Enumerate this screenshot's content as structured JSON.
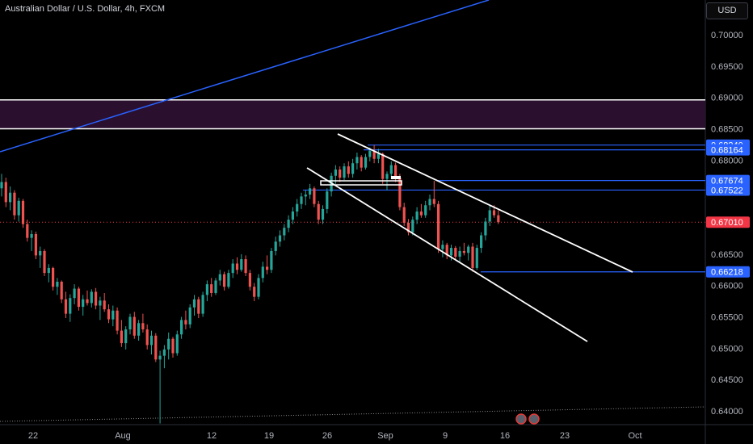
{
  "header": {
    "title": "Australian Dollar / U.S. Dollar, 4h, FXCM",
    "currency": "USD"
  },
  "colors": {
    "background": "#000000",
    "up": "#26a69a",
    "down": "#ef5350",
    "trendline": "#2962ff",
    "level": "#2962ff",
    "channel": "#ffffff",
    "zone": "#2a0f2e",
    "price_label": "#f23645",
    "axis_text": "#b2b5be"
  },
  "chart_data": {
    "type": "candlestick",
    "symbol": "AUDUSD",
    "interval": "4h",
    "source": "FXCM",
    "ylim": [
      0.6379,
      0.7075
    ],
    "y_ticks": [
      0.7,
      0.695,
      0.69,
      0.685,
      0.68,
      0.675,
      0.67,
      0.665,
      0.66,
      0.655,
      0.65,
      0.645,
      0.64
    ],
    "y_tick_labels": [
      "0.70000",
      "0.69500",
      "0.69000",
      "0.68500",
      "0.68000",
      "0.67500",
      "0.67000",
      "0.66500",
      "0.66000",
      "0.65500",
      "0.65000",
      "0.64500",
      "0.64000"
    ],
    "x_tick_labels": [
      "22",
      "Aug",
      "12",
      "19",
      "26",
      "Sep",
      "9",
      "16",
      "23",
      "Oct"
    ],
    "price_labels": [
      {
        "value": 0.6824,
        "text": "0.68240"
      },
      {
        "value": 0.68164,
        "text": "0.68164"
      },
      {
        "value": 0.67674,
        "text": "0.67674"
      },
      {
        "value": 0.67522,
        "text": "0.67522"
      },
      {
        "value": 0.6701,
        "text": "0.67010",
        "current": true
      },
      {
        "value": 0.66218,
        "text": "0.66218"
      }
    ],
    "zone": {
      "from": 0.685,
      "to": 0.6896
    },
    "ohlc": [
      [
        0.6755,
        0.6778,
        0.6742,
        0.6765
      ],
      [
        0.6765,
        0.6772,
        0.6725,
        0.6733
      ],
      [
        0.6733,
        0.6758,
        0.672,
        0.6748
      ],
      [
        0.6748,
        0.6752,
        0.6705,
        0.6712
      ],
      [
        0.6712,
        0.674,
        0.6702,
        0.6735
      ],
      [
        0.6735,
        0.6738,
        0.6692,
        0.6698
      ],
      [
        0.6698,
        0.6705,
        0.667,
        0.6676
      ],
      [
        0.6676,
        0.6688,
        0.6655,
        0.6682
      ],
      [
        0.6682,
        0.6686,
        0.6642,
        0.6648
      ],
      [
        0.6648,
        0.6662,
        0.6628,
        0.6655
      ],
      [
        0.6655,
        0.6658,
        0.6615,
        0.662
      ],
      [
        0.662,
        0.6634,
        0.6605,
        0.6628
      ],
      [
        0.6628,
        0.663,
        0.6592,
        0.6598
      ],
      [
        0.6598,
        0.6612,
        0.6585,
        0.6606
      ],
      [
        0.6606,
        0.6608,
        0.6572,
        0.6578
      ],
      [
        0.6578,
        0.659,
        0.6548,
        0.6555
      ],
      [
        0.6555,
        0.6586,
        0.6542,
        0.658
      ],
      [
        0.658,
        0.6602,
        0.657,
        0.6595
      ],
      [
        0.6595,
        0.6598,
        0.656,
        0.6566
      ],
      [
        0.6566,
        0.6585,
        0.6552,
        0.6578
      ],
      [
        0.6578,
        0.6592,
        0.6568,
        0.6572
      ],
      [
        0.6572,
        0.6594,
        0.6565,
        0.659
      ],
      [
        0.659,
        0.6596,
        0.6562,
        0.6568
      ],
      [
        0.6568,
        0.6582,
        0.6545,
        0.6576
      ],
      [
        0.6576,
        0.6588,
        0.6558,
        0.6562
      ],
      [
        0.6562,
        0.657,
        0.654,
        0.6546
      ],
      [
        0.6546,
        0.6568,
        0.6535,
        0.656
      ],
      [
        0.656,
        0.6565,
        0.6522,
        0.6528
      ],
      [
        0.6528,
        0.6545,
        0.6502,
        0.6508
      ],
      [
        0.6508,
        0.6535,
        0.6498,
        0.653
      ],
      [
        0.653,
        0.6555,
        0.6522,
        0.655
      ],
      [
        0.655,
        0.6558,
        0.6515,
        0.652
      ],
      [
        0.652,
        0.6545,
        0.6512,
        0.654
      ],
      [
        0.654,
        0.6555,
        0.6525,
        0.653
      ],
      [
        0.653,
        0.6538,
        0.6498,
        0.6505
      ],
      [
        0.6505,
        0.6528,
        0.649,
        0.652
      ],
      [
        0.652,
        0.6524,
        0.6478,
        0.6482
      ],
      [
        0.6482,
        0.6496,
        0.638,
        0.6488
      ],
      [
        0.6488,
        0.6505,
        0.6468,
        0.6498
      ],
      [
        0.6498,
        0.6525,
        0.6482,
        0.6515
      ],
      [
        0.6515,
        0.6518,
        0.6485,
        0.6492
      ],
      [
        0.6492,
        0.6528,
        0.6488,
        0.6522
      ],
      [
        0.6522,
        0.655,
        0.6515,
        0.6545
      ],
      [
        0.6545,
        0.656,
        0.653,
        0.6538
      ],
      [
        0.6538,
        0.657,
        0.6532,
        0.6565
      ],
      [
        0.6565,
        0.6585,
        0.6552,
        0.6578
      ],
      [
        0.6578,
        0.6582,
        0.6548,
        0.6555
      ],
      [
        0.6555,
        0.659,
        0.655,
        0.6585
      ],
      [
        0.6585,
        0.6608,
        0.6575,
        0.6602
      ],
      [
        0.6602,
        0.6612,
        0.6582,
        0.6588
      ],
      [
        0.6588,
        0.6612,
        0.6585,
        0.6608
      ],
      [
        0.6608,
        0.6625,
        0.66,
        0.6618
      ],
      [
        0.6618,
        0.6622,
        0.6592,
        0.6598
      ],
      [
        0.6598,
        0.6625,
        0.6595,
        0.662
      ],
      [
        0.662,
        0.6642,
        0.6612,
        0.6635
      ],
      [
        0.6635,
        0.6645,
        0.6618,
        0.6625
      ],
      [
        0.6625,
        0.665,
        0.6622,
        0.6642
      ],
      [
        0.6642,
        0.6648,
        0.6615,
        0.662
      ],
      [
        0.662,
        0.6625,
        0.6592,
        0.6598
      ],
      [
        0.6598,
        0.6604,
        0.6575,
        0.6582
      ],
      [
        0.6582,
        0.6618,
        0.6578,
        0.6612
      ],
      [
        0.6612,
        0.6638,
        0.6605,
        0.663
      ],
      [
        0.663,
        0.6648,
        0.6618,
        0.6625
      ],
      [
        0.6625,
        0.666,
        0.662,
        0.6655
      ],
      [
        0.6655,
        0.6678,
        0.6648,
        0.667
      ],
      [
        0.667,
        0.6688,
        0.6662,
        0.668
      ],
      [
        0.668,
        0.6698,
        0.6672,
        0.6692
      ],
      [
        0.6692,
        0.6712,
        0.6685,
        0.6705
      ],
      [
        0.6705,
        0.6725,
        0.6698,
        0.6718
      ],
      [
        0.6718,
        0.6738,
        0.671,
        0.673
      ],
      [
        0.673,
        0.6748,
        0.6722,
        0.6742
      ],
      [
        0.6742,
        0.6752,
        0.6728,
        0.6745
      ],
      [
        0.6745,
        0.6762,
        0.6738,
        0.6755
      ],
      [
        0.6755,
        0.6758,
        0.6725,
        0.673
      ],
      [
        0.673,
        0.6735,
        0.6698,
        0.6705
      ],
      [
        0.6705,
        0.6728,
        0.6698,
        0.6722
      ],
      [
        0.6722,
        0.6755,
        0.6715,
        0.675
      ],
      [
        0.675,
        0.678,
        0.6742,
        0.6775
      ],
      [
        0.6775,
        0.6792,
        0.6762,
        0.6785
      ],
      [
        0.6785,
        0.679,
        0.6765,
        0.6772
      ],
      [
        0.6772,
        0.6795,
        0.6768,
        0.679
      ],
      [
        0.679,
        0.6798,
        0.6772,
        0.6778
      ],
      [
        0.6778,
        0.6802,
        0.6772,
        0.6795
      ],
      [
        0.6795,
        0.6812,
        0.6785,
        0.6805
      ],
      [
        0.6805,
        0.6808,
        0.6782,
        0.6788
      ],
      [
        0.6788,
        0.681,
        0.6785,
        0.6805
      ],
      [
        0.6805,
        0.682,
        0.6798,
        0.6815
      ],
      [
        0.6815,
        0.6824,
        0.6795,
        0.6802
      ],
      [
        0.6802,
        0.6818,
        0.6795,
        0.681
      ],
      [
        0.681,
        0.6812,
        0.6762,
        0.677
      ],
      [
        0.677,
        0.6782,
        0.6752,
        0.6778
      ],
      [
        0.6778,
        0.6798,
        0.677,
        0.6792
      ],
      [
        0.6792,
        0.6796,
        0.6765,
        0.6772
      ],
      [
        0.6772,
        0.6778,
        0.672,
        0.6725
      ],
      [
        0.6725,
        0.6732,
        0.6695,
        0.67
      ],
      [
        0.67,
        0.6706,
        0.668,
        0.6685
      ],
      [
        0.6685,
        0.671,
        0.668,
        0.6705
      ],
      [
        0.6705,
        0.6725,
        0.6698,
        0.6718
      ],
      [
        0.6718,
        0.673,
        0.6708,
        0.6712
      ],
      [
        0.6712,
        0.6735,
        0.6708,
        0.6728
      ],
      [
        0.6728,
        0.6745,
        0.672,
        0.6738
      ],
      [
        0.6738,
        0.6767,
        0.6725,
        0.673
      ],
      [
        0.673,
        0.6735,
        0.6652,
        0.6658
      ],
      [
        0.6658,
        0.6672,
        0.6645,
        0.6665
      ],
      [
        0.6665,
        0.6668,
        0.6642,
        0.6648
      ],
      [
        0.6648,
        0.6665,
        0.664,
        0.666
      ],
      [
        0.666,
        0.6663,
        0.6642,
        0.6646
      ],
      [
        0.6646,
        0.6662,
        0.6638,
        0.6655
      ],
      [
        0.6655,
        0.6668,
        0.6648,
        0.6652
      ],
      [
        0.6652,
        0.6665,
        0.664,
        0.6662
      ],
      [
        0.6662,
        0.6668,
        0.6622,
        0.6628
      ],
      [
        0.6628,
        0.6665,
        0.6625,
        0.666
      ],
      [
        0.666,
        0.6685,
        0.6652,
        0.668
      ],
      [
        0.668,
        0.6708,
        0.6672,
        0.6702
      ],
      [
        0.6702,
        0.6728,
        0.6695,
        0.672
      ],
      [
        0.672,
        0.6728,
        0.6708,
        0.6712
      ],
      [
        0.6712,
        0.672,
        0.6698,
        0.6701
      ]
    ]
  },
  "ohlc_view": {
    "x_first": 0,
    "x_step": 5.3,
    "tick_x": [
      41,
      152,
      262,
      333,
      405,
      477,
      551,
      625,
      699,
      786
    ],
    "trendline": [
      [
        0,
        188
      ],
      [
        605,
        0
      ]
    ],
    "channel_upper": [
      [
        418,
        166
      ],
      [
        783,
        337
      ]
    ],
    "channel_lower": [
      [
        380,
        208
      ],
      [
        727,
        423
      ]
    ],
    "dotted_line": [
      [
        0,
        522
      ],
      [
        873,
        504
      ]
    ]
  }
}
